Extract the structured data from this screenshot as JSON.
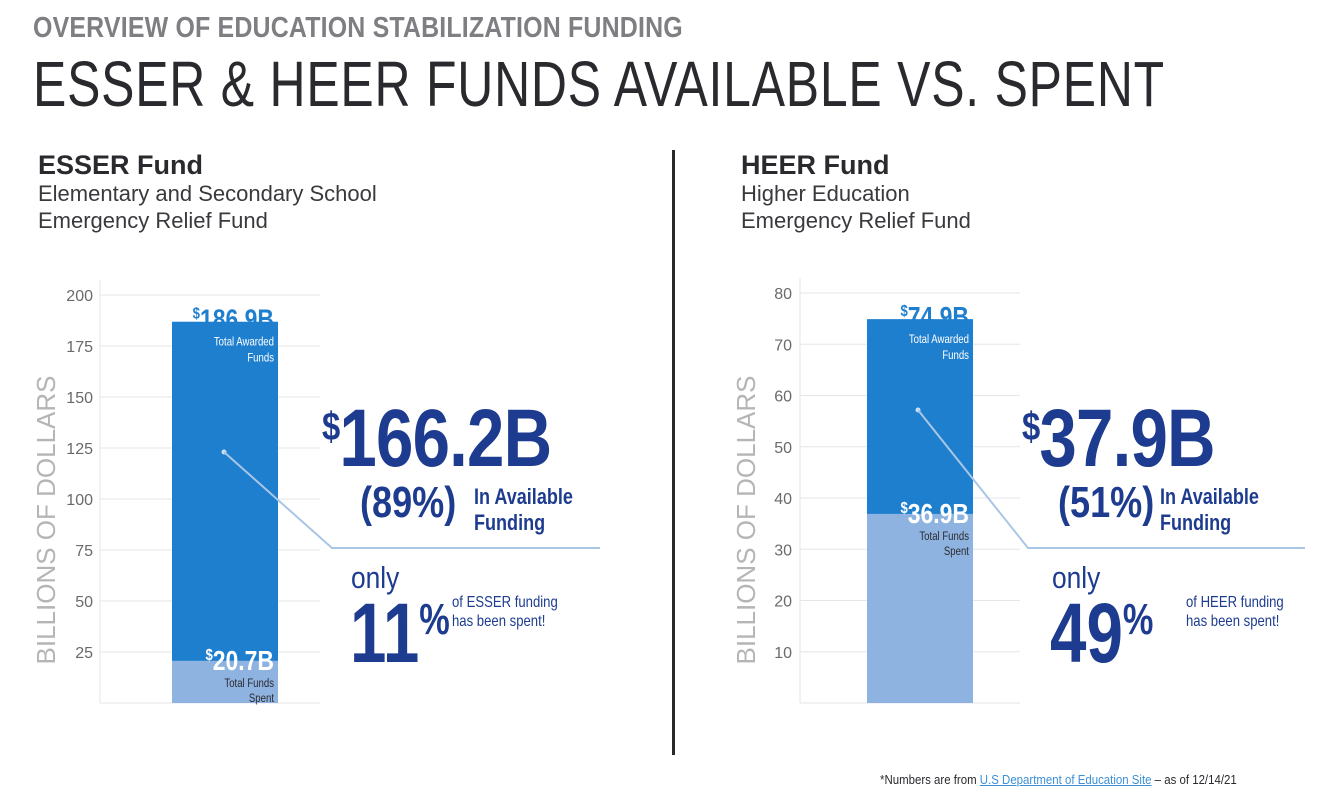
{
  "header": {
    "kicker": "OVERVIEW OF EDUCATION STABILIZATION FUNDING",
    "title": "ESSER & HEER FUNDS AVAILABLE VS. SPENT"
  },
  "panels": [
    {
      "title": "ESSER Fund",
      "subtitle_line1": "Elementary and Secondary School",
      "subtitle_line2": "Emergency Relief Fund",
      "available_amount": "166.2B",
      "available_pct": "89%",
      "available_label_1": "In Available",
      "available_label_2": "Funding",
      "only_label": "only",
      "spent_pct": "11",
      "spent_pct_sign": "%",
      "spent_note_1": "of ESSER funding",
      "spent_note_2": "has been spent!"
    },
    {
      "title": "HEER Fund",
      "subtitle_line1": "Higher Education",
      "subtitle_line2": "Emergency Relief Fund",
      "available_amount": "37.9B",
      "available_pct": "51%",
      "available_label_1": "In Available",
      "available_label_2": "Funding",
      "only_label": "only",
      "spent_pct": "49",
      "spent_pct_sign": "%",
      "spent_note_1": "of HEER funding",
      "spent_note_2": "has been spent!"
    }
  ],
  "chart_data": [
    {
      "type": "bar",
      "ylabel": "BILLIONS OF DOLLARS",
      "ylim": [
        0,
        200
      ],
      "yticks": [
        "25",
        "50",
        "75",
        "100",
        "125",
        "150",
        "175",
        "200"
      ],
      "ytick_values": [
        25,
        50,
        75,
        100,
        125,
        150,
        175,
        200
      ],
      "grid": true,
      "series": [
        {
          "name": "Total Awarded Funds",
          "value": 186.9,
          "value_label": "186.9B",
          "color": "#1f7fcf"
        },
        {
          "name": "Total Funds Spent",
          "value": 20.7,
          "value_label": "20.7B",
          "color": "#8fb3e0"
        }
      ]
    },
    {
      "type": "bar",
      "ylabel": "BILLIONS OF DOLLARS",
      "ylim": [
        0,
        80
      ],
      "yticks": [
        "10",
        "20",
        "30",
        "40",
        "50",
        "60",
        "70",
        "80"
      ],
      "ytick_values": [
        10,
        20,
        30,
        40,
        50,
        60,
        70,
        80
      ],
      "grid": true,
      "series": [
        {
          "name": "Total Awarded Funds",
          "value": 74.9,
          "value_label": "74.9B",
          "color": "#1f7fcf"
        },
        {
          "name": "Total Funds Spent",
          "value": 36.9,
          "value_label": "36.9B",
          "color": "#8fb3e0"
        }
      ]
    }
  ],
  "footnote": {
    "prefix": "*Numbers are from ",
    "link": "U.S Department of Education Site",
    "suffix": " – as of 12/14/21"
  },
  "colors": {
    "accent_navy": "#1d3c8f",
    "awarded_blue": "#1f7fcf",
    "spent_blue": "#8fb3e0",
    "axis_gray": "#b5b5b8",
    "grid_gray": "#e6e6e8"
  }
}
